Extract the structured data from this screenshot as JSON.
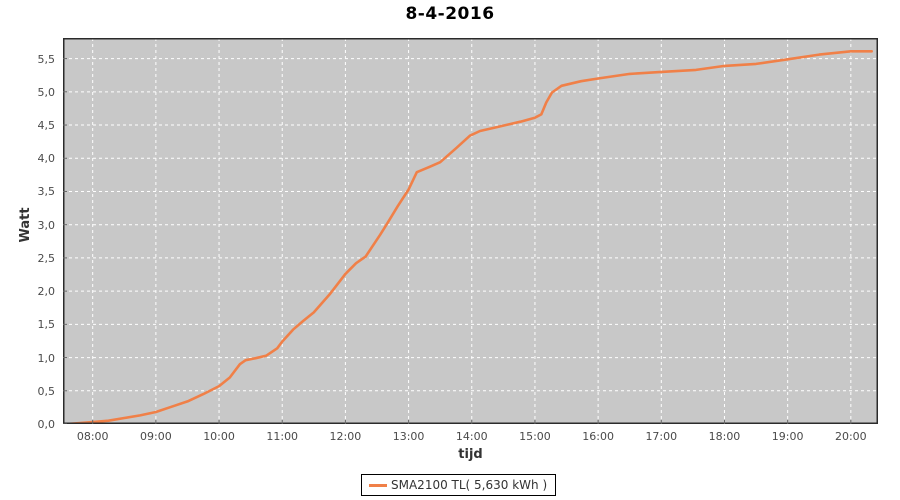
{
  "title": "8-4-2016",
  "y_axis_label": "Watt",
  "x_axis_label": "tijd",
  "legend": {
    "label": "SMA2100 TL( 5,630 kWh )",
    "line_color": "#f08048"
  },
  "colors": {
    "page_bg": "#ffffff",
    "plot_bg": "#c8c8c8",
    "grid": "#ffffff",
    "plot_border": "#2b2b2b",
    "tick_mark": "#666666",
    "tick_text": "#4a4a4a",
    "line": "#f08048"
  },
  "chart_data": {
    "type": "line",
    "title": "8-4-2016",
    "xlabel": "tijd",
    "ylabel": "Watt",
    "grid": "white-dashed",
    "legend_position": "bottom-center",
    "xlim_hours": [
      7.53,
      20.43
    ],
    "ylim": [
      0,
      5.81
    ],
    "x_ticks": [
      {
        "hour": 8,
        "label": "08:00"
      },
      {
        "hour": 9,
        "label": "09:00"
      },
      {
        "hour": 10,
        "label": "10:00"
      },
      {
        "hour": 11,
        "label": "11:00"
      },
      {
        "hour": 12,
        "label": "12:00"
      },
      {
        "hour": 13,
        "label": "13:00"
      },
      {
        "hour": 14,
        "label": "14:00"
      },
      {
        "hour": 15,
        "label": "15:00"
      },
      {
        "hour": 16,
        "label": "16:00"
      },
      {
        "hour": 17,
        "label": "17:00"
      },
      {
        "hour": 18,
        "label": "18:00"
      },
      {
        "hour": 19,
        "label": "19:00"
      },
      {
        "hour": 20,
        "label": "20:00"
      }
    ],
    "y_ticks": [
      {
        "value": 0.0,
        "label": "0,0"
      },
      {
        "value": 0.5,
        "label": "0,5"
      },
      {
        "value": 1.0,
        "label": "1,0"
      },
      {
        "value": 1.5,
        "label": "1,5"
      },
      {
        "value": 2.0,
        "label": "2,0"
      },
      {
        "value": 2.5,
        "label": "2,5"
      },
      {
        "value": 3.0,
        "label": "3,0"
      },
      {
        "value": 3.5,
        "label": "3,5"
      },
      {
        "value": 4.0,
        "label": "4,0"
      },
      {
        "value": 4.5,
        "label": "4,5"
      },
      {
        "value": 5.0,
        "label": "5,0"
      },
      {
        "value": 5.5,
        "label": "5,5"
      }
    ],
    "series": [
      {
        "name": "SMA2100 TL( 5,630 kWh )",
        "color": "#f08048",
        "points_hours_kwh": [
          [
            7.58,
            0.0
          ],
          [
            7.75,
            0.01
          ],
          [
            8.0,
            0.03
          ],
          [
            8.25,
            0.05
          ],
          [
            8.5,
            0.09
          ],
          [
            8.75,
            0.13
          ],
          [
            9.0,
            0.18
          ],
          [
            9.25,
            0.26
          ],
          [
            9.5,
            0.34
          ],
          [
            9.75,
            0.45
          ],
          [
            10.0,
            0.57
          ],
          [
            10.17,
            0.7
          ],
          [
            10.33,
            0.9
          ],
          [
            10.42,
            0.96
          ],
          [
            10.58,
            0.99
          ],
          [
            10.75,
            1.03
          ],
          [
            10.92,
            1.14
          ],
          [
            11.0,
            1.24
          ],
          [
            11.17,
            1.42
          ],
          [
            11.33,
            1.55
          ],
          [
            11.5,
            1.68
          ],
          [
            11.75,
            1.95
          ],
          [
            12.0,
            2.26
          ],
          [
            12.17,
            2.42
          ],
          [
            12.32,
            2.52
          ],
          [
            12.55,
            2.85
          ],
          [
            12.67,
            3.03
          ],
          [
            12.83,
            3.28
          ],
          [
            13.0,
            3.53
          ],
          [
            13.13,
            3.79
          ],
          [
            13.33,
            3.87
          ],
          [
            13.5,
            3.94
          ],
          [
            13.75,
            4.15
          ],
          [
            13.97,
            4.34
          ],
          [
            14.13,
            4.41
          ],
          [
            14.45,
            4.48
          ],
          [
            14.77,
            4.55
          ],
          [
            15.0,
            4.61
          ],
          [
            15.1,
            4.66
          ],
          [
            15.18,
            4.84
          ],
          [
            15.27,
            4.99
          ],
          [
            15.42,
            5.09
          ],
          [
            15.73,
            5.16
          ],
          [
            16.0,
            5.2
          ],
          [
            16.5,
            5.27
          ],
          [
            17.0,
            5.3
          ],
          [
            17.55,
            5.33
          ],
          [
            18.0,
            5.39
          ],
          [
            18.5,
            5.42
          ],
          [
            19.0,
            5.49
          ],
          [
            19.5,
            5.56
          ],
          [
            20.0,
            5.61
          ],
          [
            20.33,
            5.61
          ]
        ]
      }
    ]
  }
}
